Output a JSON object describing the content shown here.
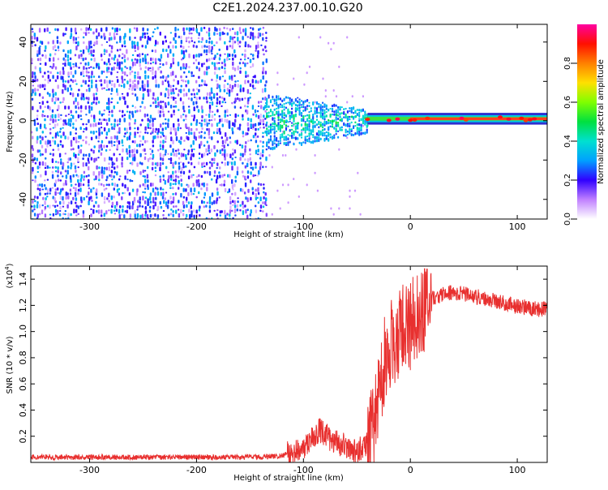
{
  "title": "C2E1.2024.237.00.10.G20",
  "chart_data": [
    {
      "type": "heatmap",
      "xlabel": "Height of straight line (km)",
      "ylabel": "Frequency (Hz)",
      "xlim": [
        -355,
        128
      ],
      "ylim": [
        -50,
        49
      ],
      "xticks": [
        -300,
        -200,
        -100,
        0,
        100
      ],
      "yticks": [
        -40,
        -20,
        0,
        20,
        40
      ],
      "colorbar": {
        "label": "Normalized spectral amplitude",
        "range": [
          0,
          1
        ],
        "ticks": [
          0.0,
          0.2,
          0.4,
          0.6,
          0.8
        ]
      },
      "features": [
        {
          "x_range": [
            -355,
            -135
          ],
          "y_range": [
            -50,
            49
          ],
          "amplitude": [
            0.05,
            0.35
          ],
          "description_in_data": "broadband"
        },
        {
          "x_range": [
            -135,
            -40
          ],
          "y_range": [
            -15,
            15
          ],
          "amplitude": [
            0.25,
            0.6
          ]
        },
        {
          "x_range": [
            -40,
            128
          ],
          "y_center": 1,
          "amplitude": [
            0.6,
            1.0
          ]
        }
      ],
      "grid": false
    },
    {
      "type": "line",
      "xlabel": "Height of straight line (km)",
      "ylabel": "SNR (10 * v/v)",
      "y_multiplier": "(x10",
      "y_multiplier_exp": "4",
      "y_multiplier_close": ")",
      "xlim": [
        -355,
        128
      ],
      "ylim": [
        0,
        1.5
      ],
      "xticks": [
        -300,
        -200,
        -100,
        0,
        100
      ],
      "yticks": [
        0.2,
        0.4,
        0.6,
        0.8,
        1.0,
        1.2,
        1.4
      ],
      "series": [
        {
          "color": "#e8302f",
          "x": [
            -355,
            -300,
            -200,
            -150,
            -120,
            -100,
            -85,
            -75,
            -60,
            -50,
            -40,
            -35,
            -30,
            -25,
            -20,
            -15,
            -10,
            -5,
            0,
            5,
            10,
            15,
            20,
            30,
            40,
            50,
            60,
            70,
            80,
            90,
            100,
            110,
            120,
            128
          ],
          "values": [
            0.04,
            0.04,
            0.04,
            0.04,
            0.05,
            0.12,
            0.25,
            0.18,
            0.12,
            0.08,
            0.15,
            0.3,
            0.55,
            0.75,
            0.85,
            0.95,
            1.0,
            1.05,
            1.05,
            1.1,
            1.15,
            1.22,
            1.25,
            1.28,
            1.3,
            1.29,
            1.27,
            1.25,
            1.23,
            1.21,
            1.2,
            1.18,
            1.17,
            1.18
          ]
        }
      ],
      "grid": false
    }
  ]
}
